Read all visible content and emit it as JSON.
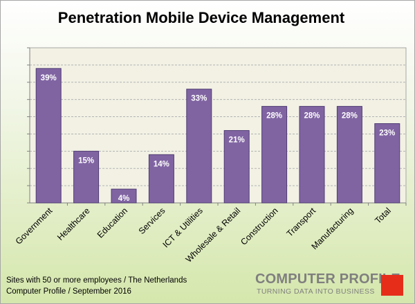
{
  "title": "Penetration Mobile Device Management",
  "chart_data": {
    "type": "bar",
    "title": "Penetration Mobile Device Management",
    "xlabel": "",
    "ylabel": "",
    "categories": [
      "Government",
      "Healthcare",
      "Education",
      "Services",
      "ICT & Utilities",
      "Wholesale & Retail",
      "Construction",
      "Transport",
      "Manufacturing",
      "Total"
    ],
    "values": [
      39,
      15,
      4,
      14,
      33,
      21,
      28,
      28,
      28,
      23
    ],
    "data_labels": [
      "39%",
      "15%",
      "4%",
      "14%",
      "33%",
      "21%",
      "28%",
      "28%",
      "28%",
      "23%"
    ],
    "ylim": [
      0,
      45
    ],
    "grid": true,
    "bar_color": "#8064a2",
    "plot_background": "#f2f1e4",
    "gridline_color": "#b3b3b3"
  },
  "footnote": {
    "line1": "Sites with 50 or more employees / The Netherlands",
    "line2": "Computer Profile / September 2016"
  },
  "logo": {
    "name": "COMPUTER PROFILE",
    "tagline": "TURNING DATA INTO BUSINESS",
    "accent_color": "#e52d1a"
  }
}
